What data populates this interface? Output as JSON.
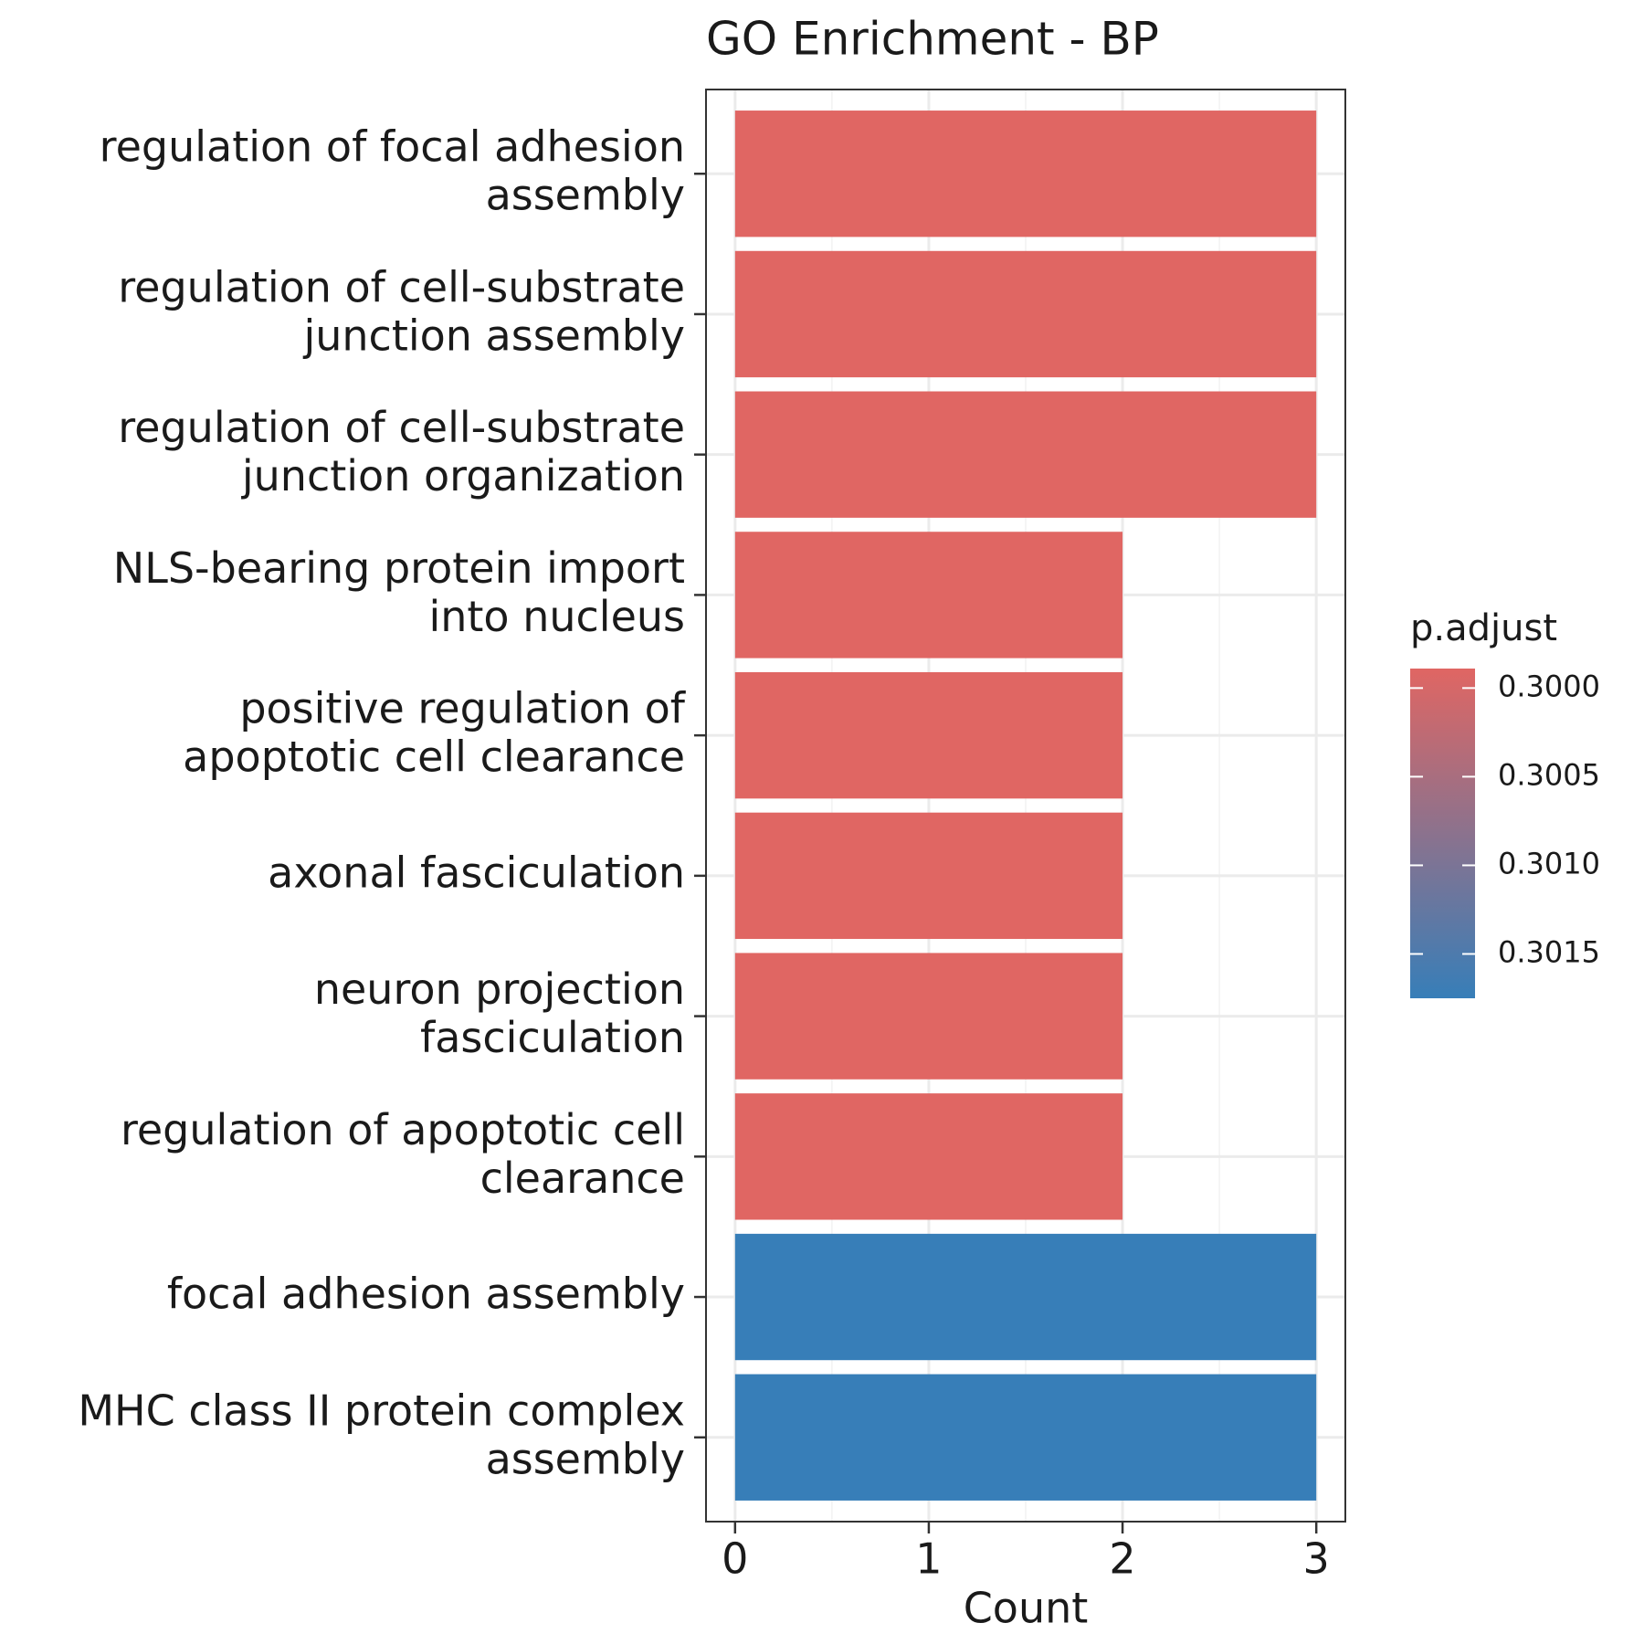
{
  "chart_data": {
    "type": "bar",
    "orientation": "horizontal",
    "title": "GO Enrichment - BP",
    "x_label": "Count",
    "categories": [
      "regulation of focal adhesion\nassembly",
      "regulation of cell-substrate\njunction assembly",
      "regulation of cell-substrate\njunction organization",
      "NLS-bearing protein import\ninto nucleus",
      "positive regulation of\napoptotic cell clearance",
      "axonal fasciculation",
      "neuron projection\nfasciculation",
      "regulation of apoptotic cell\nclearance",
      "focal adhesion assembly",
      "MHC class II protein complex\nassembly"
    ],
    "values": [
      3,
      3,
      3,
      2,
      2,
      2,
      2,
      2,
      3,
      3
    ],
    "color_values": [
      0.29989,
      0.29989,
      0.29989,
      0.29989,
      0.29989,
      0.29989,
      0.29989,
      0.29989,
      0.30175,
      0.30175
    ],
    "xlim": [
      -0.15,
      3.15
    ],
    "xticks": [
      0,
      1,
      2,
      3
    ],
    "grid": true,
    "legend": {
      "title": "p.adjust",
      "position": "right",
      "low_color": "#e06663",
      "high_color": "#377eb8",
      "clim": [
        0.29989,
        0.30175
      ],
      "ticks": [
        {
          "value": 0.3,
          "label": "0.3000"
        },
        {
          "value": 0.3005,
          "label": "0.3005"
        },
        {
          "value": 0.301,
          "label": "0.3010"
        },
        {
          "value": 0.3015,
          "label": "0.3015"
        }
      ]
    }
  }
}
